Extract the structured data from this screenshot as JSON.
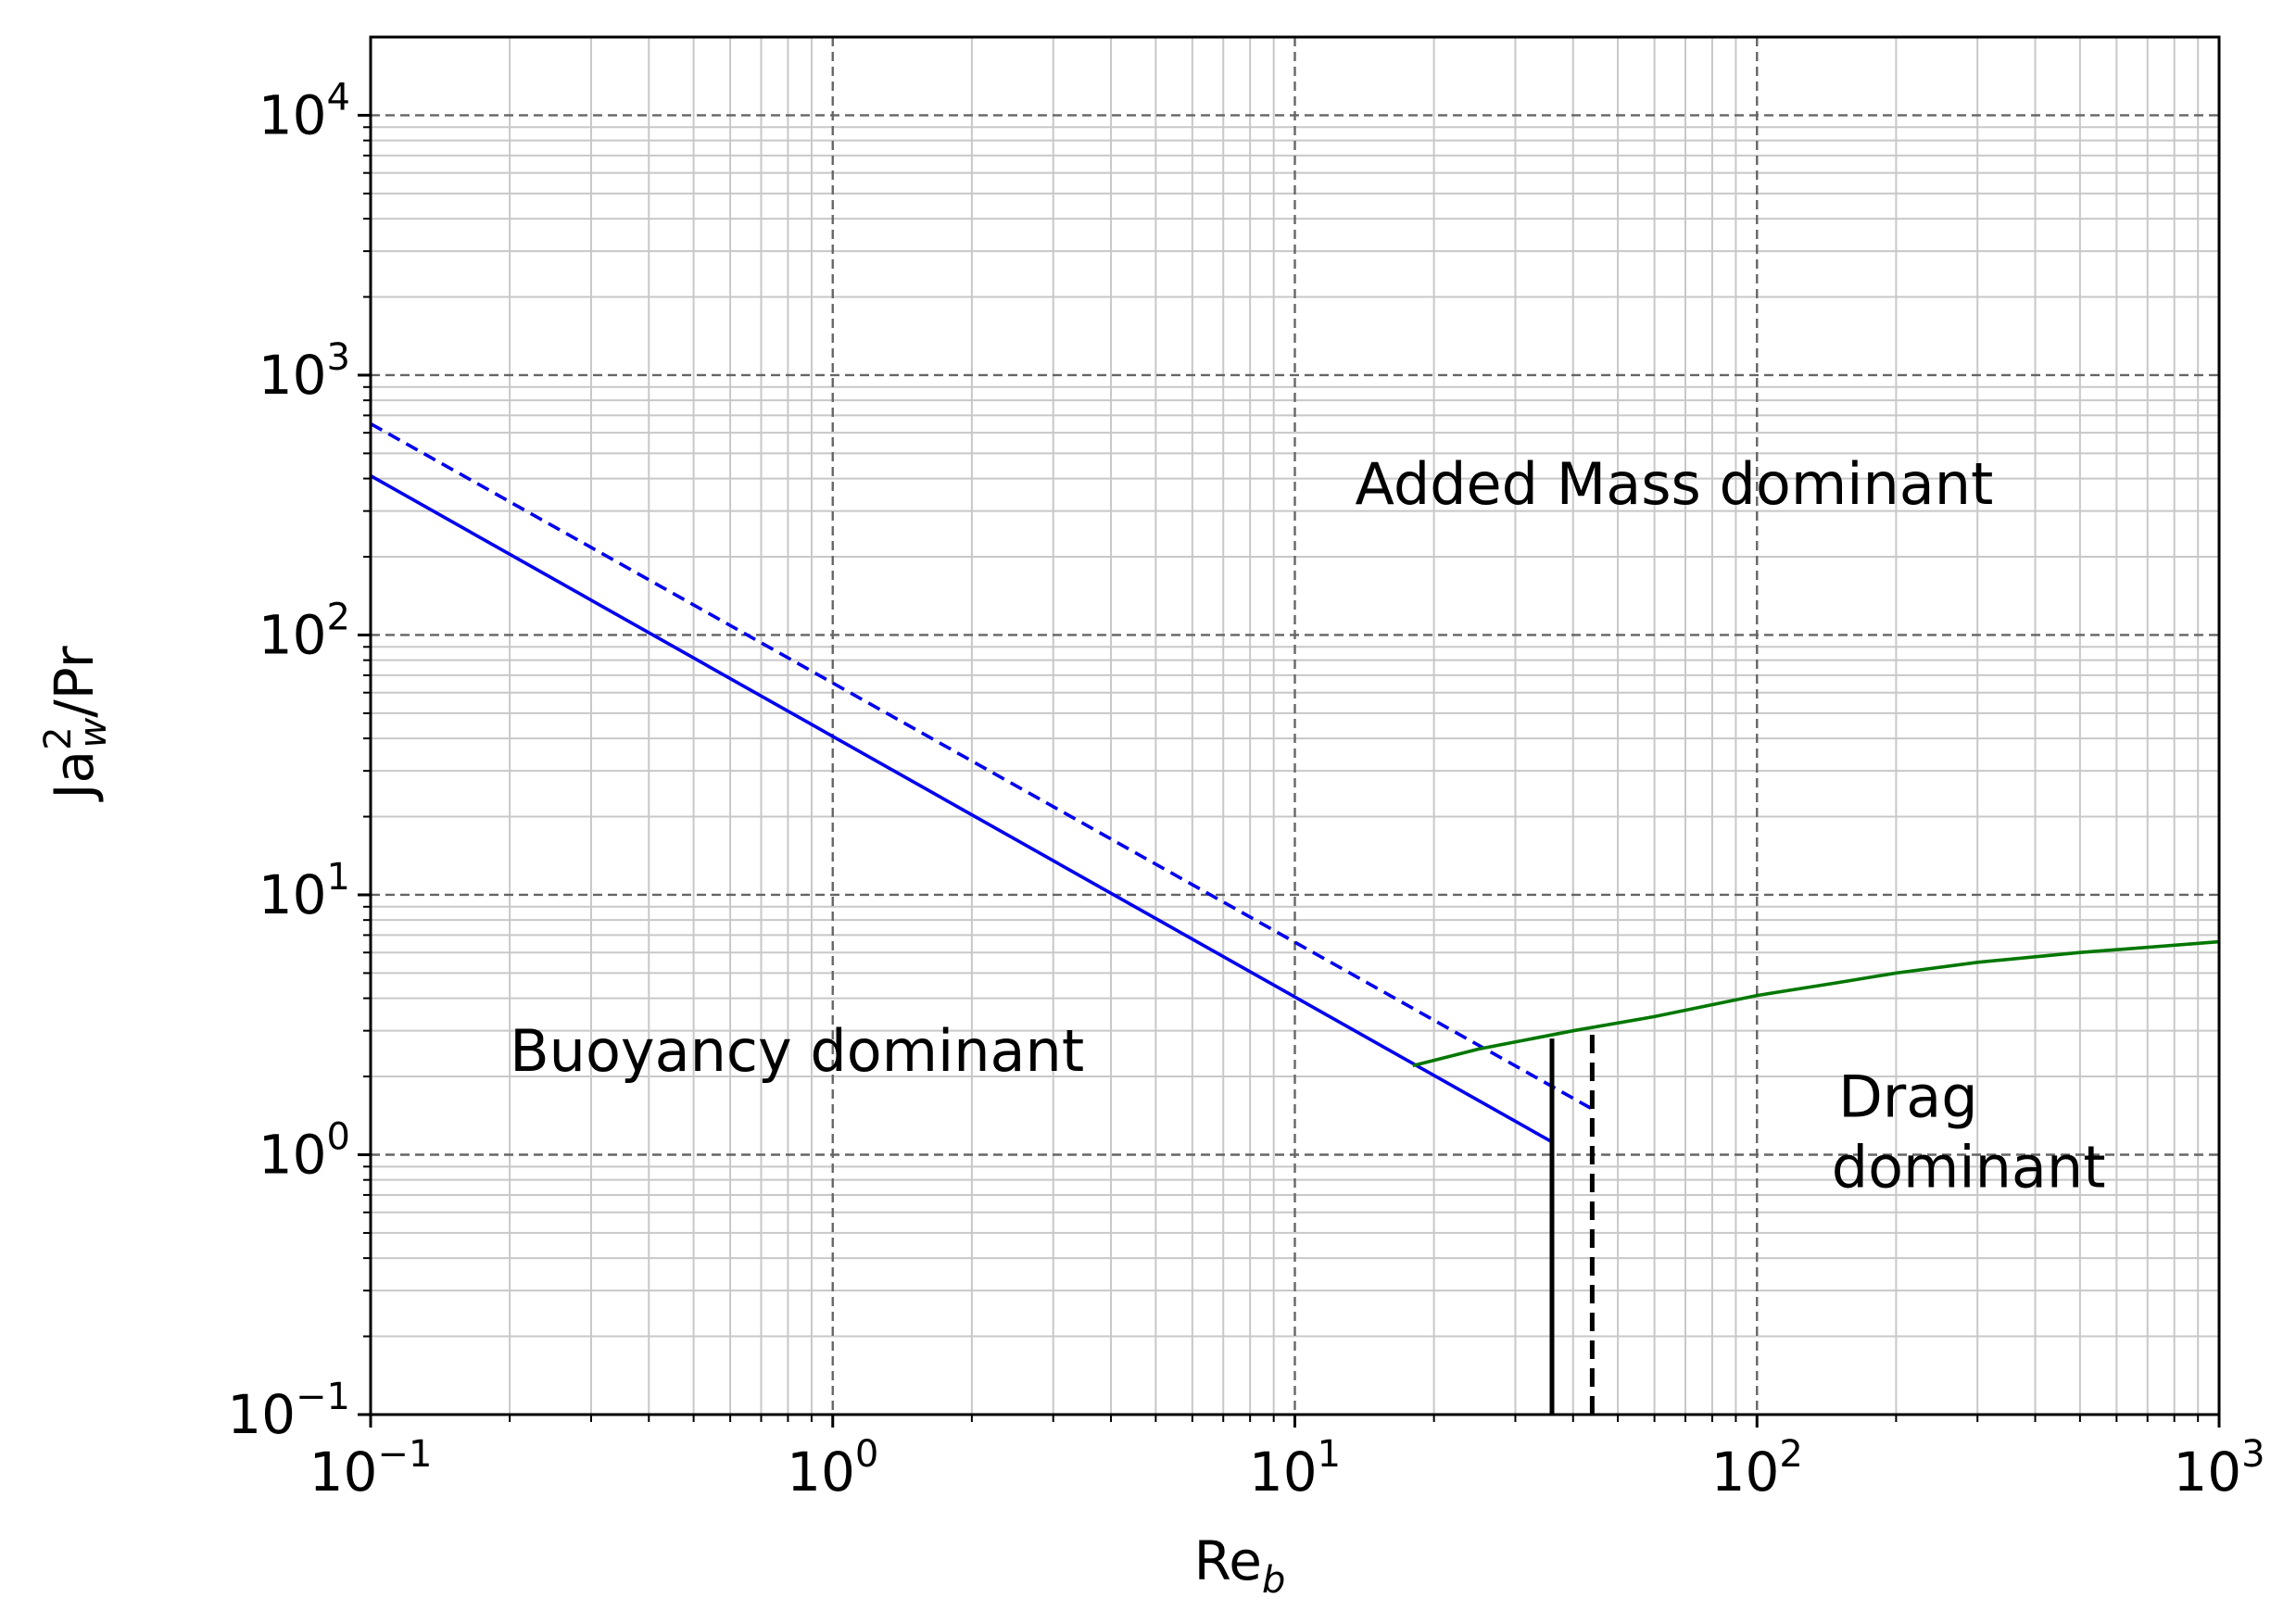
{
  "chart_data": {
    "type": "line",
    "x_scale": "log",
    "y_scale": "log",
    "xlim": [
      0.1,
      1000
    ],
    "ylim": [
      0.1,
      20000
    ],
    "grid": true,
    "xlabel": {
      "main": "Re",
      "sub": "b"
    },
    "ylabel": {
      "main": "Ja",
      "sup": "2",
      "sub": "w",
      "rest": "/Pr"
    },
    "x_ticks": [
      {
        "value": 0.1,
        "base": "10",
        "exp": "−1"
      },
      {
        "value": 1,
        "base": "10",
        "exp": "0"
      },
      {
        "value": 10,
        "base": "10",
        "exp": "1"
      },
      {
        "value": 100,
        "base": "10",
        "exp": "2"
      },
      {
        "value": 1000,
        "base": "10",
        "exp": "3"
      }
    ],
    "y_ticks": [
      {
        "value": 0.1,
        "base": "10",
        "exp": "−1"
      },
      {
        "value": 1,
        "base": "10",
        "exp": "0"
      },
      {
        "value": 10,
        "base": "10",
        "exp": "1"
      },
      {
        "value": 100,
        "base": "10",
        "exp": "2"
      },
      {
        "value": 1000,
        "base": "10",
        "exp": "3"
      },
      {
        "value": 10000,
        "base": "10",
        "exp": "4"
      }
    ],
    "series": [
      {
        "color": "#0000ee",
        "style": "solid",
        "points": [
          [
            0.1,
            410
          ],
          [
            36,
            1.12
          ]
        ]
      },
      {
        "color": "#0000ee",
        "style": "dashed",
        "points": [
          [
            0.1,
            650
          ],
          [
            44,
            1.5
          ]
        ]
      },
      {
        "color": "#007700",
        "style": "solid",
        "points": [
          [
            18,
            2.2
          ],
          [
            25,
            2.55
          ],
          [
            40,
            3.0
          ],
          [
            60,
            3.4
          ],
          [
            100,
            4.1
          ],
          [
            150,
            4.6
          ],
          [
            200,
            5.0
          ],
          [
            300,
            5.5
          ],
          [
            500,
            6.0
          ],
          [
            1000,
            6.6
          ]
        ]
      },
      {
        "color": "#000000",
        "style": "solid",
        "points": [
          [
            36,
            0.1
          ],
          [
            36,
            2.8
          ]
        ]
      },
      {
        "color": "#000000",
        "style": "dashed",
        "points": [
          [
            44,
            0.1
          ],
          [
            44,
            3.1
          ]
        ]
      }
    ],
    "annotations": [
      {
        "text": "Added Mass dominant",
        "x": 13.5,
        "y": 320
      },
      {
        "text": "Buoyancy dominant",
        "x": 0.2,
        "y": 2.1
      },
      {
        "text": "Drag",
        "x": 150,
        "y": 1.4
      },
      {
        "text": " dominant",
        "x": 145,
        "y": 0.75
      }
    ]
  }
}
